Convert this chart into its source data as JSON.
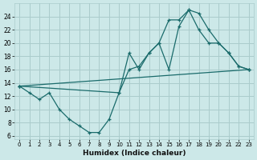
{
  "xlabel": "Humidex (Indice chaleur)",
  "bg_color": "#cce8e8",
  "line_color": "#1a6b6b",
  "grid_color": "#aacccc",
  "xlim": [
    -0.5,
    23.5
  ],
  "ylim": [
    5.5,
    26
  ],
  "xticks": [
    0,
    1,
    2,
    3,
    4,
    5,
    6,
    7,
    8,
    9,
    10,
    11,
    12,
    13,
    14,
    15,
    16,
    17,
    18,
    19,
    20,
    21,
    22,
    23
  ],
  "yticks": [
    6,
    8,
    10,
    12,
    14,
    16,
    18,
    20,
    22,
    24
  ],
  "line1_x": [
    0,
    1,
    2,
    3,
    4,
    5,
    6,
    7,
    8,
    9,
    10,
    11,
    12,
    13,
    14,
    15,
    16,
    17,
    18,
    19,
    20,
    21,
    22,
    23
  ],
  "line1_y": [
    13.5,
    12.5,
    11.5,
    12.5,
    10.0,
    8.5,
    7.5,
    6.5,
    6.5,
    8.5,
    12.5,
    18.5,
    16.0,
    18.5,
    20.0,
    23.5,
    23.5,
    25.0,
    24.5,
    22.0,
    20.0,
    18.5,
    16.5,
    16.0
  ],
  "line2_x": [
    0,
    10,
    11,
    12,
    13,
    14,
    15,
    16,
    17,
    18,
    19,
    20,
    21,
    22,
    23
  ],
  "line2_y": [
    13.5,
    12.5,
    16.0,
    16.5,
    18.5,
    20.0,
    16.0,
    22.5,
    25.0,
    22.0,
    20.0,
    20.0,
    18.5,
    16.5,
    16.0
  ],
  "line3_x": [
    0,
    23
  ],
  "line3_y": [
    13.5,
    16.0
  ]
}
